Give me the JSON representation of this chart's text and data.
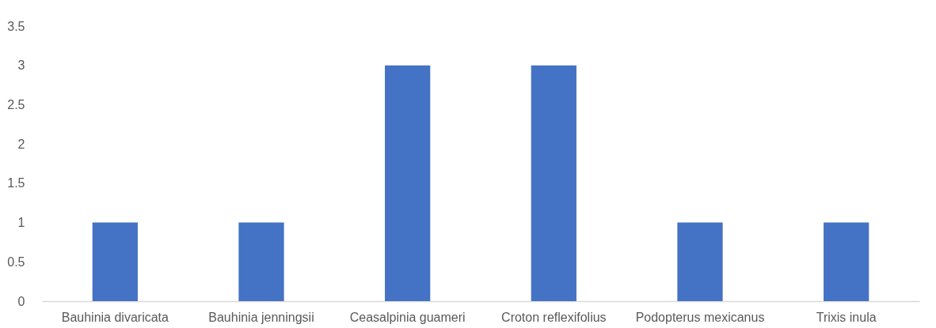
{
  "chart_data": {
    "type": "bar",
    "categories": [
      "Bauhinia divaricata",
      "Bauhinia jenningsii",
      "Ceasalpinia guameri",
      "Croton reflexifolius",
      "Podopterus mexicanus",
      "Trixis inula"
    ],
    "values": [
      1,
      1,
      3,
      3,
      1,
      1
    ],
    "color": "#4472c4",
    "ylim": [
      0,
      3.5
    ],
    "yticks": [
      0,
      0.5,
      1,
      1.5,
      2,
      2.5,
      3,
      3.5
    ],
    "grid": false
  }
}
